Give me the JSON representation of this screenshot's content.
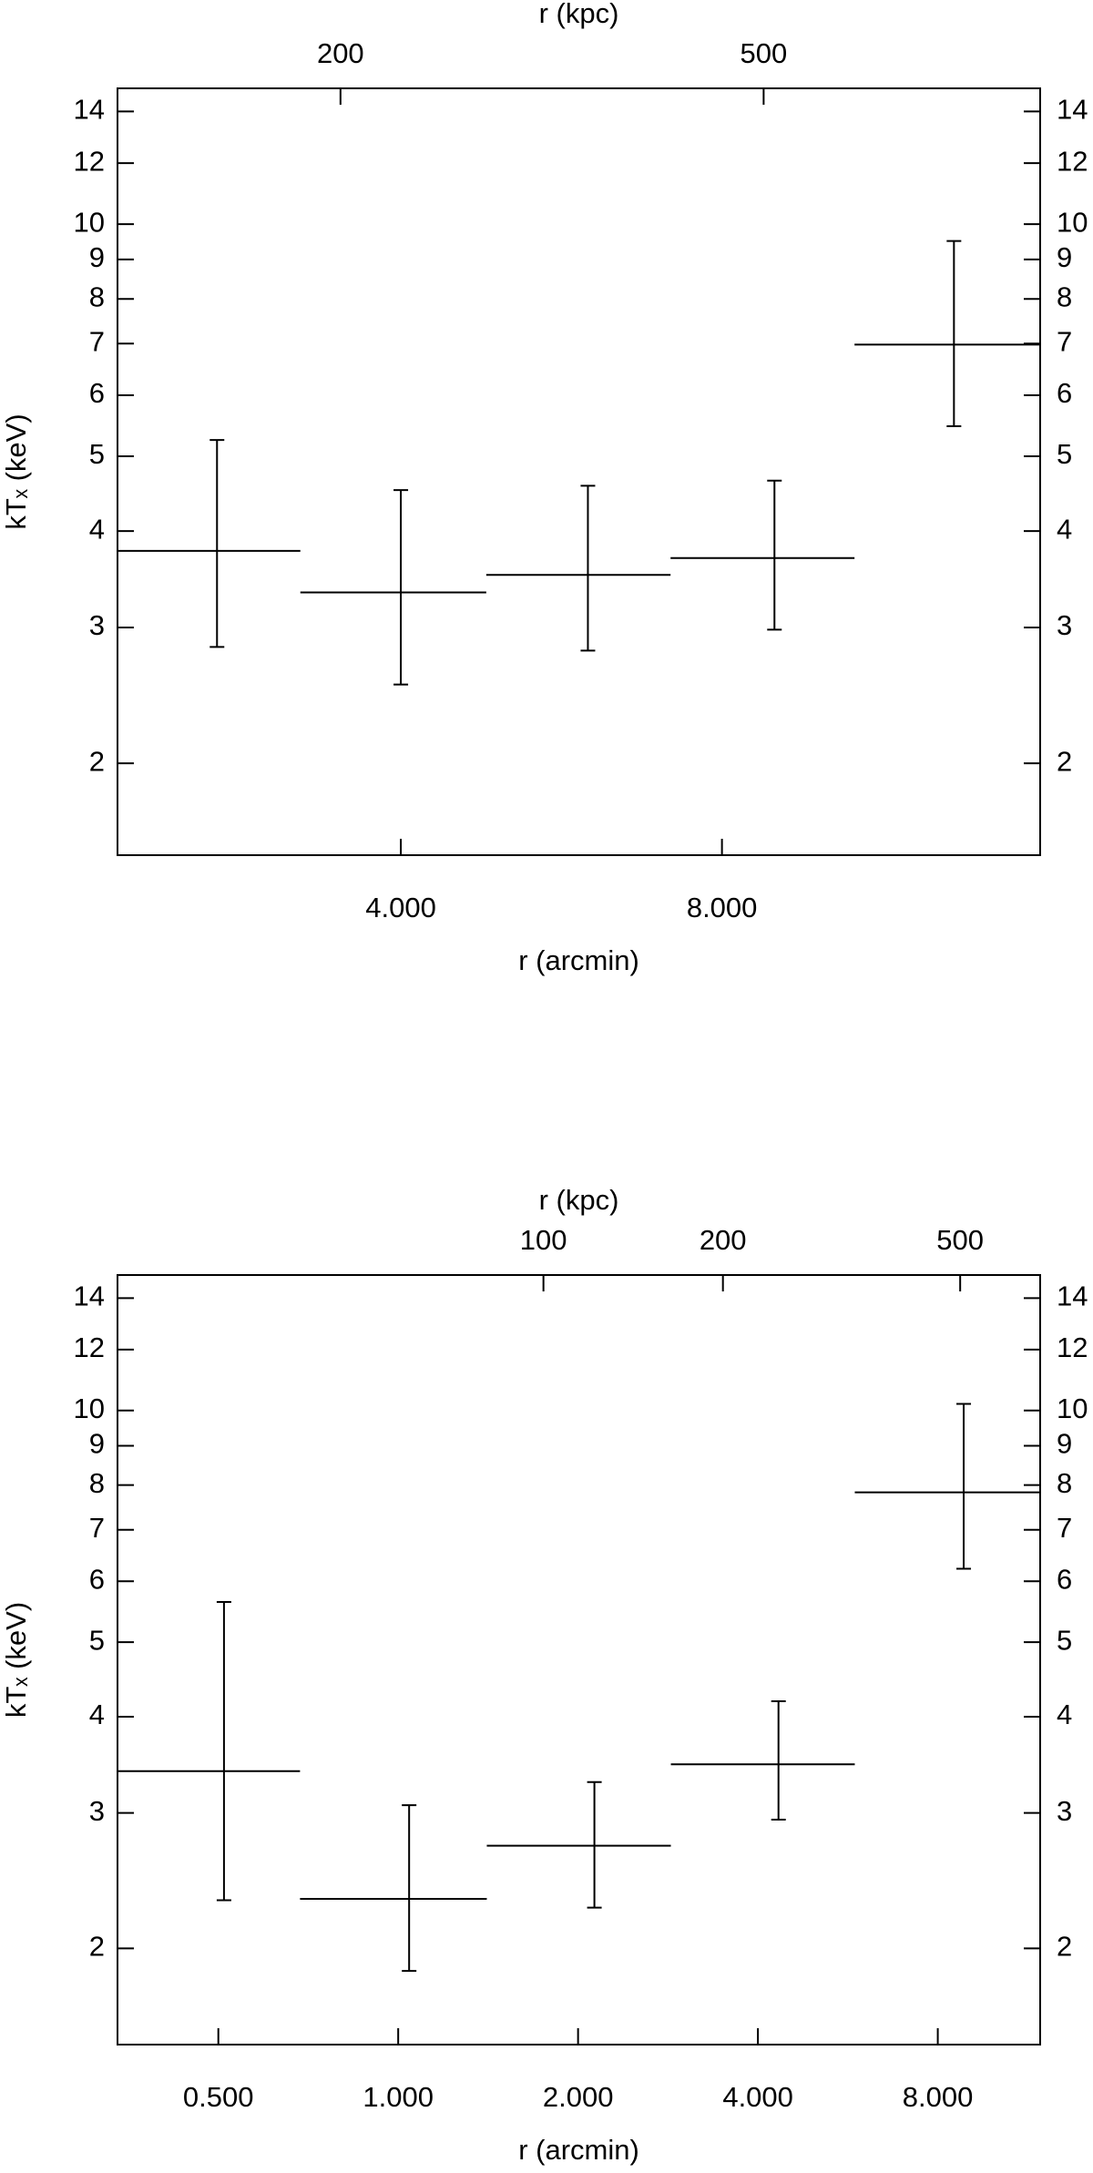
{
  "chart_data": [
    {
      "type": "errorbar",
      "xlabel": "r (arcmin)",
      "x2label": "r (kpc)",
      "ylabel": "kTₓ (keV)",
      "log_x": true,
      "log_y": true,
      "xlim": [
        2.17,
        15.9
      ],
      "xticks": [
        {
          "value": 4,
          "label": "4.000"
        },
        {
          "value": 8,
          "label": "8.000"
        }
      ],
      "x2lim": [
        123.4,
        910
      ],
      "x2ticks": [
        200,
        500
      ],
      "ylim": [
        1.52,
        15.0
      ],
      "yticks": [
        2,
        3,
        4,
        5,
        6,
        7,
        8,
        9,
        10,
        12,
        14
      ],
      "series": [
        {
          "color": "#000000",
          "x": [
            2.69,
            4.0,
            5.99,
            8.96,
            13.2
          ],
          "x_low": [
            2.17,
            3.22,
            4.81,
            7.16,
            10.65
          ],
          "x_high": [
            3.22,
            4.81,
            7.16,
            10.65,
            15.9
          ],
          "values": [
            3.77,
            3.33,
            3.51,
            3.69,
            6.98
          ],
          "y_low": [
            2.83,
            2.53,
            2.8,
            2.98,
            5.47
          ],
          "y_high": [
            5.25,
            4.52,
            4.58,
            4.65,
            9.51
          ]
        }
      ]
    },
    {
      "type": "errorbar",
      "xlabel": "r (arcmin)",
      "x2label": "r (kpc)",
      "ylabel": "kTₓ (keV)",
      "log_x": true,
      "log_y": true,
      "xlim": [
        0.339,
        11.87
      ],
      "xticks": [
        {
          "value": 0.5,
          "label": "0.500"
        },
        {
          "value": 1,
          "label": "1.000"
        },
        {
          "value": 2,
          "label": "2.000"
        },
        {
          "value": 4,
          "label": "4.000"
        },
        {
          "value": 8,
          "label": "8.000"
        }
      ],
      "x2lim": [
        19.3,
        681
      ],
      "x2ticks": [
        100,
        200,
        500
      ],
      "ylim": [
        1.5,
        15.0
      ],
      "yticks": [
        2,
        3,
        4,
        5,
        6,
        7,
        8,
        9,
        10,
        12,
        14
      ],
      "series": [
        {
          "color": "#000000",
          "x": [
            0.511,
            1.043,
            2.13,
            4.33,
            8.84
          ],
          "x_low": [
            0.339,
            0.685,
            1.407,
            2.86,
            5.81
          ],
          "x_high": [
            0.685,
            1.407,
            2.86,
            5.81,
            11.87
          ],
          "values": [
            3.4,
            2.32,
            2.72,
            3.47,
            7.83
          ],
          "y_low": [
            2.31,
            1.87,
            2.26,
            2.94,
            6.23
          ],
          "y_high": [
            5.64,
            3.07,
            3.29,
            4.19,
            10.2
          ]
        }
      ]
    }
  ]
}
